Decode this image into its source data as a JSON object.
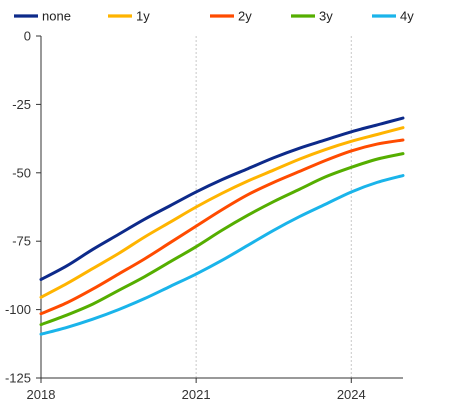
{
  "chart_data": {
    "type": "line",
    "title": "",
    "xlabel": "",
    "ylabel": "",
    "xlim": [
      2018,
      2025
    ],
    "ylim": [
      -125,
      0
    ],
    "y_ticks": [
      0,
      -25,
      -50,
      -75,
      -100,
      -125
    ],
    "y_tick_labels": [
      "0",
      "-25",
      "-50",
      "-75",
      "-100",
      "-125"
    ],
    "x_ticks": [
      2018,
      2021,
      2024
    ],
    "x_tick_labels": [
      "2018",
      "2021",
      "2024"
    ],
    "grid": true,
    "legend_position": "top",
    "x": [
      2018.0,
      2018.5,
      2019.0,
      2019.5,
      2020.0,
      2020.5,
      2021.0,
      2021.5,
      2022.0,
      2022.5,
      2023.0,
      2023.5,
      2024.0,
      2024.5,
      2025.0
    ],
    "series": [
      {
        "name": "none",
        "color": "#0d2a8a",
        "values": [
          -89,
          -84,
          -78,
          -72.5,
          -67,
          -62,
          -57,
          -52.5,
          -48.5,
          -44.5,
          -41,
          -38,
          -35,
          -32.5,
          -30
        ]
      },
      {
        "name": "1y",
        "color": "#ffb400",
        "values": [
          -95.5,
          -90.5,
          -85,
          -79.5,
          -73.5,
          -68,
          -62.5,
          -57.5,
          -53,
          -49,
          -45,
          -41.5,
          -38.5,
          -36,
          -33.5
        ]
      },
      {
        "name": "2y",
        "color": "#ff4b00",
        "values": [
          -101.5,
          -97.5,
          -92.5,
          -87,
          -81.5,
          -75.5,
          -69.5,
          -63.5,
          -58,
          -53.5,
          -49.5,
          -45.5,
          -42,
          -39.5,
          -38
        ]
      },
      {
        "name": "3y",
        "color": "#55ae00",
        "values": [
          -105.5,
          -102,
          -98,
          -93,
          -88,
          -82.5,
          -77,
          -71,
          -65.5,
          -60.5,
          -56,
          -51.5,
          -48,
          -45,
          -43
        ]
      },
      {
        "name": "4y",
        "color": "#1ab4ea",
        "values": [
          -109,
          -106.5,
          -103.5,
          -100,
          -96,
          -91.5,
          -87,
          -82,
          -76.5,
          -71,
          -66,
          -61.5,
          -57,
          -53.5,
          -51
        ]
      }
    ]
  }
}
